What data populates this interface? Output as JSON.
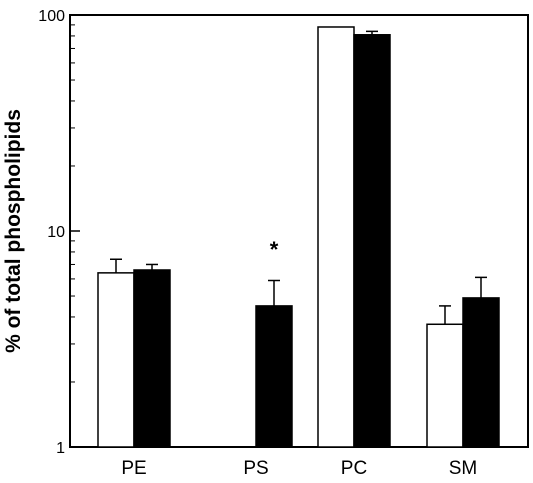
{
  "chart_data": {
    "type": "bar",
    "title": "",
    "xlabel": "",
    "ylabel": "% of total phospholipids",
    "yscale": "log",
    "ylim": [
      1,
      100
    ],
    "yticks": [
      "1",
      "10",
      "100"
    ],
    "categories": [
      "PE",
      "PS",
      "PC",
      "SM"
    ],
    "series": [
      {
        "fill": "#ffffff",
        "values": [
          6.4,
          1.0,
          88.0,
          3.7
        ],
        "error": [
          1.0,
          0,
          0,
          0.8
        ]
      },
      {
        "fill": "#000000",
        "values": [
          6.6,
          4.5,
          81.0,
          4.9
        ],
        "error": [
          0.4,
          1.4,
          3.0,
          1.2
        ]
      }
    ],
    "annotations": [
      {
        "text": "*",
        "category": "PS",
        "value": 8.6
      }
    ],
    "grid": false,
    "legend": "none"
  }
}
